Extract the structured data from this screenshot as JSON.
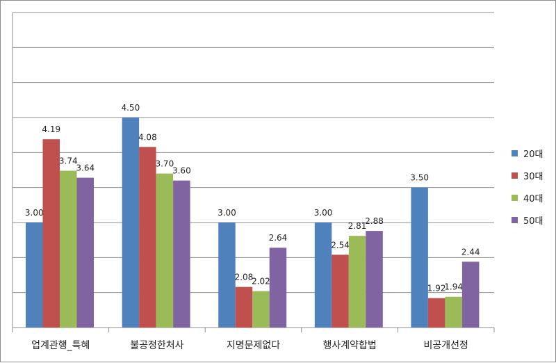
{
  "chart_data": {
    "type": "bar",
    "title": "",
    "xlabel": "",
    "ylabel": "",
    "ylim": [
      1.5,
      6.0
    ],
    "grid": true,
    "legend_position": "right",
    "categories": [
      "업계관행_특혜",
      "불공정한처사",
      "지명문제없다",
      "행사계약합법",
      "비공개선정"
    ],
    "series": [
      {
        "name": "20대",
        "color": "#4F81BD",
        "values": [
          3.0,
          4.5,
          3.0,
          3.0,
          3.5
        ]
      },
      {
        "name": "30대",
        "color": "#C0504D",
        "values": [
          4.19,
          4.08,
          2.08,
          2.54,
          1.92
        ]
      },
      {
        "name": "40대",
        "color": "#9BBB59",
        "values": [
          3.74,
          3.7,
          2.02,
          2.81,
          1.94
        ]
      },
      {
        "name": "50대",
        "color": "#8064A2",
        "values": [
          3.64,
          3.6,
          2.64,
          2.88,
          2.44
        ]
      }
    ],
    "value_labels": [
      [
        "3.00",
        "4.50",
        "3.00",
        "3.00",
        "3.50"
      ],
      [
        "4.19",
        "4.08",
        "2.08",
        "2.54",
        "1.92"
      ],
      [
        "3.74",
        "3.70",
        "2.02",
        "2.81",
        "1.94"
      ],
      [
        "3.64",
        "3.60",
        "2.64",
        "2.88",
        "2.44"
      ]
    ]
  }
}
